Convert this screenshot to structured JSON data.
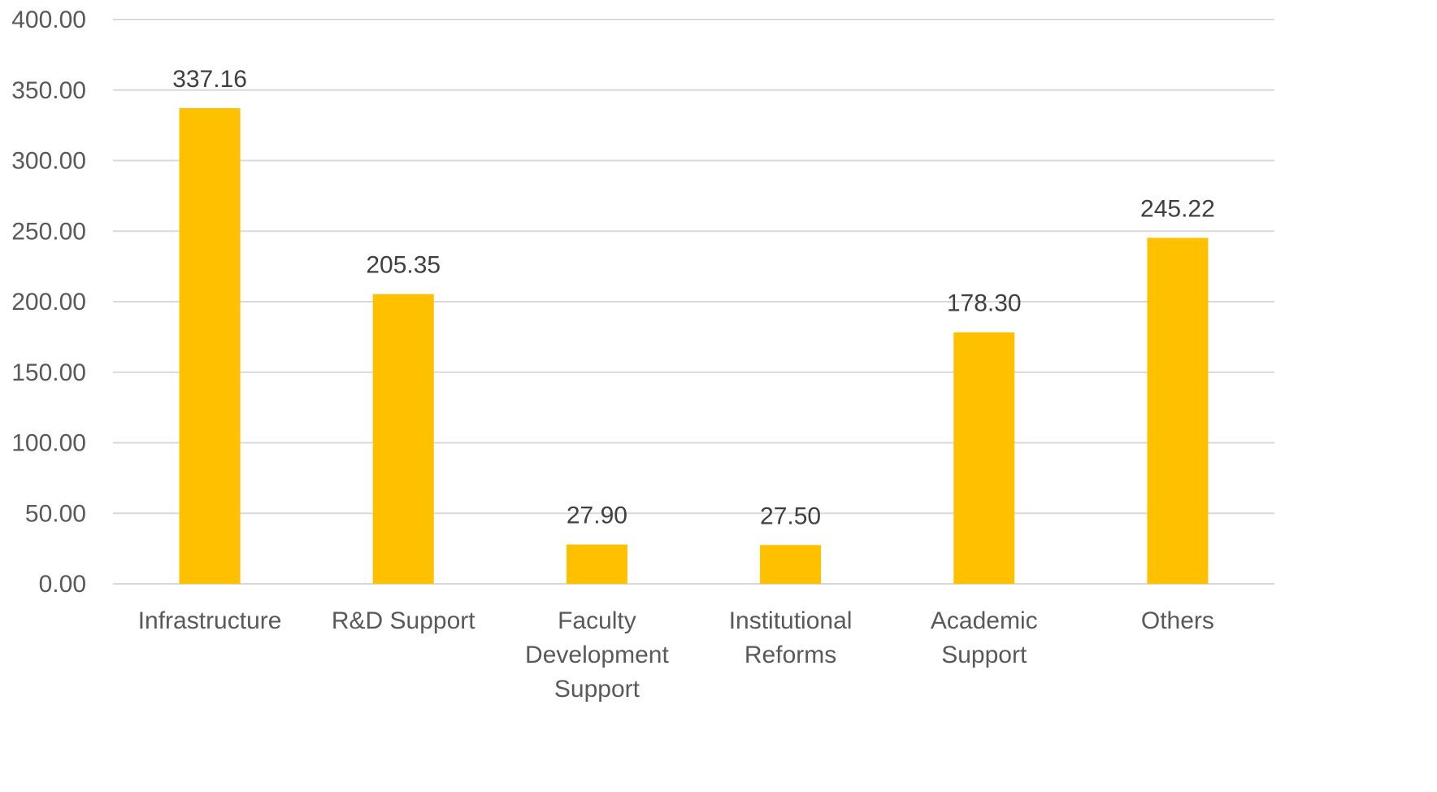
{
  "chart_data": {
    "type": "bar",
    "title": "",
    "xlabel": "",
    "ylabel": "",
    "categories": [
      [
        "Infrastructure"
      ],
      [
        "R&D Support"
      ],
      [
        "Faculty",
        "Development",
        "Support"
      ],
      [
        "Institutional",
        "Reforms"
      ],
      [
        "Academic",
        "Support"
      ],
      [
        "Others"
      ]
    ],
    "values": [
      337.16,
      205.35,
      27.9,
      27.5,
      178.3,
      245.22
    ],
    "data_labels": [
      "337.16",
      "205.35",
      "27.90",
      "27.50",
      "178.30",
      "245.22"
    ],
    "ylim": [
      0,
      400
    ],
    "yticks": [
      0,
      50,
      100,
      150,
      200,
      250,
      300,
      350,
      400
    ],
    "ytick_labels": [
      "0.00",
      "50.00",
      "100.00",
      "150.00",
      "200.00",
      "250.00",
      "300.00",
      "350.00",
      "400.00"
    ],
    "grid": true,
    "legend": "none",
    "colors": {
      "bar": "#ffc000",
      "grid": "#d9d9d9",
      "text": "#595959"
    }
  }
}
